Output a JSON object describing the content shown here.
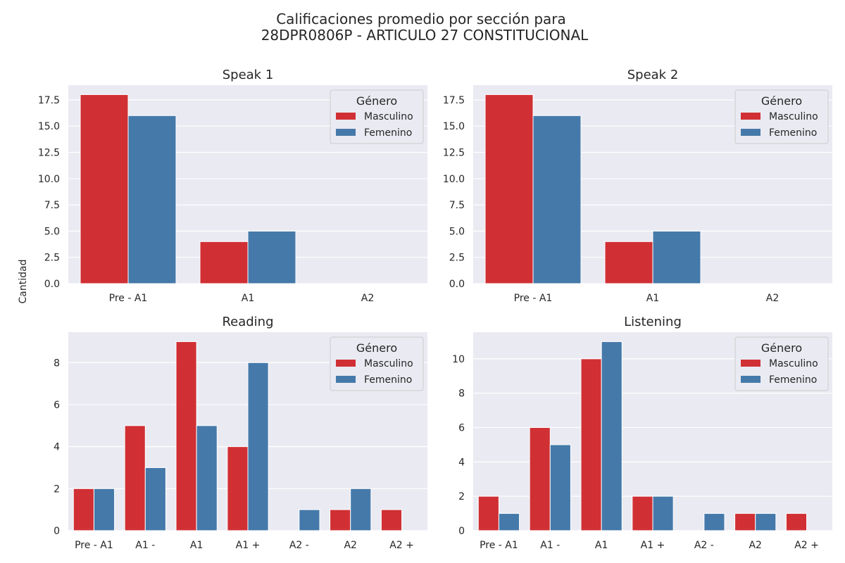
{
  "figure": {
    "title_line1": "Calificaciones promedio por sección para",
    "title_line2": "28DPR0806P - ARTICULO 27 CONSTITUCIONAL",
    "ylabel": "Cantidad"
  },
  "colors": {
    "Masculino": "#d03034",
    "Femenino": "#4579aa",
    "plot_bg": "#eaeaf2",
    "grid": "#ffffff"
  },
  "chart_data": [
    {
      "type": "bar",
      "title": "Speak 1",
      "categories": [
        "Pre - A1",
        "A1",
        "A2"
      ],
      "series": [
        {
          "name": "Masculino",
          "values": [
            18,
            4,
            0
          ]
        },
        {
          "name": "Femenino",
          "values": [
            16,
            5,
            0
          ]
        }
      ],
      "ylim": [
        0,
        18.9
      ],
      "yticks": [
        0.0,
        2.5,
        5.0,
        7.5,
        10.0,
        12.5,
        15.0,
        17.5
      ],
      "ytick_labels": [
        "0.0",
        "2.5",
        "5.0",
        "7.5",
        "10.0",
        "12.5",
        "15.0",
        "17.5"
      ],
      "legend": {
        "title": "Género",
        "placement": "top-right"
      },
      "grid": true
    },
    {
      "type": "bar",
      "title": "Speak 2",
      "categories": [
        "Pre - A1",
        "A1",
        "A2"
      ],
      "series": [
        {
          "name": "Masculino",
          "values": [
            18,
            4,
            0
          ]
        },
        {
          "name": "Femenino",
          "values": [
            16,
            5,
            0
          ]
        }
      ],
      "ylim": [
        0,
        18.9
      ],
      "yticks": [
        0.0,
        2.5,
        5.0,
        7.5,
        10.0,
        12.5,
        15.0,
        17.5
      ],
      "ytick_labels": [
        "0.0",
        "2.5",
        "5.0",
        "7.5",
        "10.0",
        "12.5",
        "15.0",
        "17.5"
      ],
      "legend": {
        "title": "Género",
        "placement": "top-right"
      },
      "grid": true
    },
    {
      "type": "bar",
      "title": "Reading",
      "categories": [
        "Pre - A1",
        "A1 -",
        "A1",
        "A1 +",
        "A2 -",
        "A2",
        "A2 +"
      ],
      "series": [
        {
          "name": "Masculino",
          "values": [
            2,
            5,
            9,
            4,
            0,
            1,
            1
          ]
        },
        {
          "name": "Femenino",
          "values": [
            2,
            3,
            5,
            8,
            1,
            2,
            0
          ]
        }
      ],
      "ylim": [
        0,
        9.45
      ],
      "yticks": [
        0,
        2,
        4,
        6,
        8
      ],
      "ytick_labels": [
        "0",
        "2",
        "4",
        "6",
        "8"
      ],
      "legend": {
        "title": "Género",
        "placement": "top-right"
      },
      "grid": true
    },
    {
      "type": "bar",
      "title": "Listening",
      "categories": [
        "Pre - A1",
        "A1 -",
        "A1",
        "A1 +",
        "A2 -",
        "A2",
        "A2 +"
      ],
      "series": [
        {
          "name": "Masculino",
          "values": [
            2,
            6,
            10,
            2,
            0,
            1,
            1
          ]
        },
        {
          "name": "Femenino",
          "values": [
            1,
            5,
            11,
            2,
            1,
            1,
            0
          ]
        }
      ],
      "ylim": [
        0,
        11.55
      ],
      "yticks": [
        0,
        2,
        4,
        6,
        8,
        10
      ],
      "ytick_labels": [
        "0",
        "2",
        "4",
        "6",
        "8",
        "10"
      ],
      "legend": {
        "title": "Género",
        "placement": "top-right"
      },
      "grid": true
    }
  ]
}
